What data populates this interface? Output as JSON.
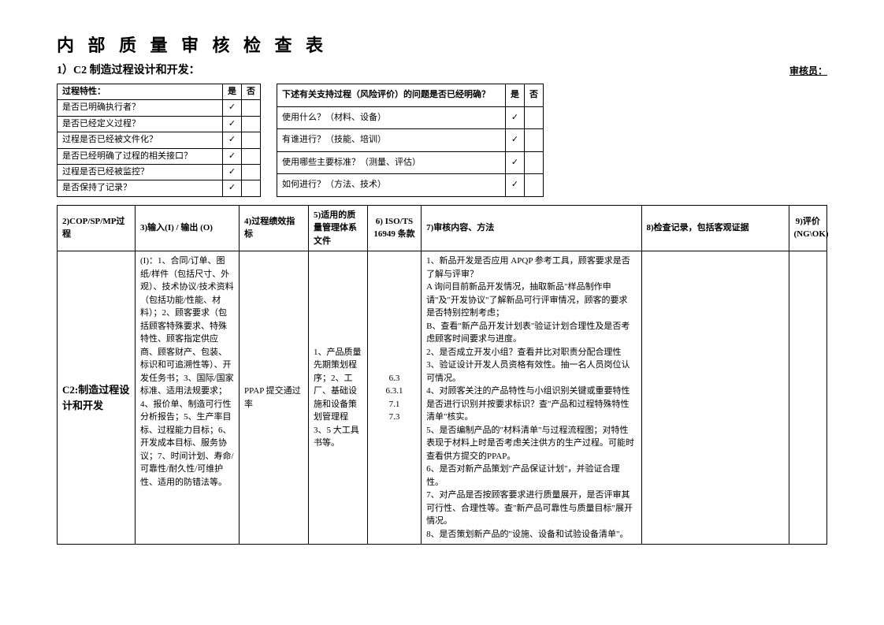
{
  "title": "内 部 质 量 审 核 检 查 表",
  "subtitle": "1）C2 制造过程设计和开发：",
  "auditor_label": "审核员：",
  "left_table": {
    "header": "过程特性：",
    "yes": "是",
    "no": "否",
    "rows": [
      {
        "q": "是否已明确执行者？",
        "yes": "✓",
        "no": ""
      },
      {
        "q": "是否已经定义过程？",
        "yes": "✓",
        "no": ""
      },
      {
        "q": "过程是否已经被文件化？",
        "yes": "✓",
        "no": ""
      },
      {
        "q": "是否已经明确了过程的相关接口？",
        "yes": "✓",
        "no": ""
      },
      {
        "q": "过程是否已经被监控？",
        "yes": "✓",
        "no": ""
      },
      {
        "q": "是否保持了记录？",
        "yes": "✓",
        "no": ""
      }
    ]
  },
  "right_table": {
    "header": "下述有关支持过程（风险评价）的问题是否已经明确？",
    "yes": "是",
    "no": "否",
    "rows": [
      {
        "q": "使用什么？（材料、设备）",
        "yes": "✓",
        "no": ""
      },
      {
        "q": "有谁进行？（技能、培训）",
        "yes": "✓",
        "no": ""
      },
      {
        "q": "使用哪些主要标准？（测量、评估）",
        "yes": "✓",
        "no": ""
      },
      {
        "q": "如何进行？（方法、技术）",
        "yes": "✓",
        "no": ""
      }
    ]
  },
  "main_table": {
    "headers": {
      "process": "2)COP/SP/MP过程",
      "io": "3)输入(I) / 输出 (O)",
      "kpi": "4)过程绩效指标",
      "doc": "5)适用的质量管理体系文件",
      "iso": "6) ISO/TS 16949 条款",
      "audit": "7)审核内容、方法",
      "record": "8)检查记录，包括客观证据",
      "eval": "9)评价 (NG\\OK)"
    },
    "row": {
      "process": "C2:制造过程设计和开发",
      "io": "(I)：1、合同/订单、图纸/样件（包括尺寸、外观）、技术协议/技术资料（包括功能/性能、材料）；2、顾客要求（包括顾客特殊要求、特殊特性、顾客指定供应商、顾客财产、包装、标识和可追溯性等）、开发任务书；3、国际/国家标准、适用法规要求；4、报价单、制造可行性分析报告；5、生产率目标、过程能力目标；6、开发成本目标、服务协议；7、时间计划、寿命/可靠性/耐久性/可维护性、适用的防错法等。",
      "kpi": "PPAP 提交通过率",
      "doc": "1、产品质量先期策划程序；2、工厂、基础设施和设备策划管理程 3、5 大工具书等。",
      "iso": "6.3\n6.3.1\n7.1\n7.3",
      "audit": "1、新品开发是否应用 APQP 参考工具，顾客要求是否了解与评审？\nA 询问目前新品开发情况，抽取新品\"样品制作申请\"及\"开发协议\"了解新品可行评审情况，顾客的要求是否特别控制考虑；\nB、查看\"新产品开发计划表\"验证计划合理性及是否考虑顾客时间要求与进度。\n2、是否成立开发小组？查看并比对职责分配合理性\n3、验证设计开发人员资格有效性。抽一名人员岗位认可情况。\n4、对顾客关注的产品特性与小组识别关键或重要特性是否进行识别并按要求标识？查\"产品和过程特殊特性清单\"核实。\n5、是否编制产品的\"材料清单\"与过程流程图；对特性表现于材料上时是否考虑关注供方的生产过程。可能时查看供方提交的PPAP。\n6、是否对新产品策划\"产品保证计划\"，并验证合理性。\n7、对产品是否按顾客要求进行质量展开，是否评审其可行性、合理性等。查\"新产品可靠性与质量目标\"展开情况。\n8、是否策划新产品的\"设施、设备和试验设备清单\"。",
      "record": "",
      "eval": ""
    }
  }
}
